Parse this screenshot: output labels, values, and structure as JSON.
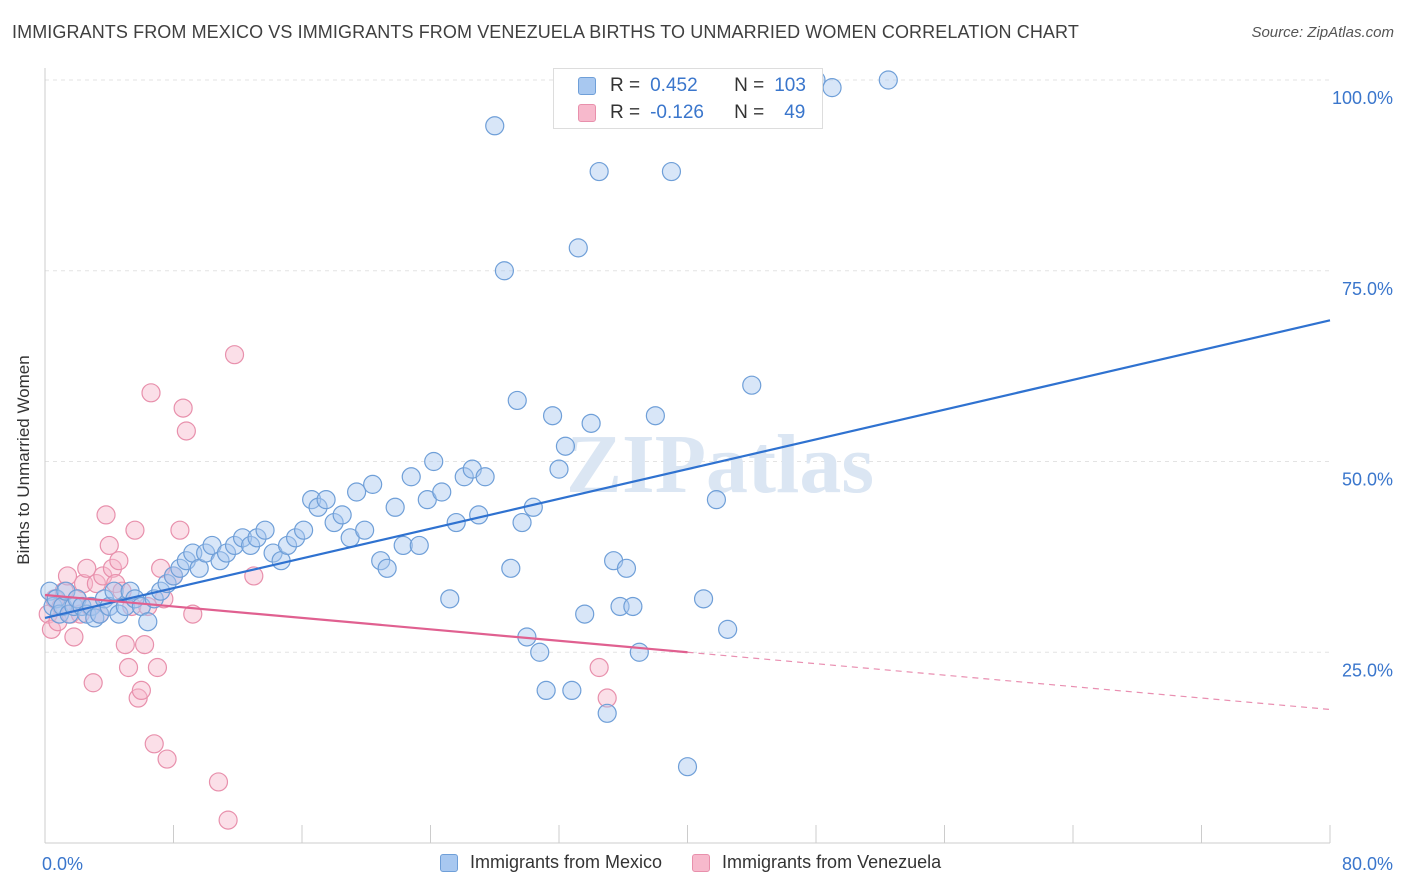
{
  "title": "IMMIGRANTS FROM MEXICO VS IMMIGRANTS FROM VENEZUELA BIRTHS TO UNMARRIED WOMEN CORRELATION CHART",
  "source": "Source: ZipAtlas.com",
  "watermark": "ZIPatlas",
  "legend_top": {
    "r_label": "R =",
    "n_label": "N =",
    "mexico": {
      "r": "0.452",
      "n": "103"
    },
    "venezuela": {
      "r": "-0.126",
      "n": "49"
    }
  },
  "legend_bottom": {
    "mexico": "Immigrants from Mexico",
    "venezuela": "Immigrants from Venezuela"
  },
  "colors": {
    "mexico_fill": "#a8c8f0",
    "mexico_stroke": "#6f9fd8",
    "mexico_line": "#2f72d0",
    "venezuela_fill": "#f7b9cc",
    "venezuela_stroke": "#e890ac",
    "venezuela_line": "#e06090",
    "tick_label": "#3a76cc"
  },
  "chart_data": {
    "type": "scatter",
    "title": "IMMIGRANTS FROM MEXICO VS IMMIGRANTS FROM VENEZUELA BIRTHS TO UNMARRIED WOMEN CORRELATION CHART",
    "xlabel": "",
    "ylabel": "Births to Unmarried Women",
    "xlim": [
      0,
      80
    ],
    "ylim": [
      0,
      100
    ],
    "x_tick_labels": [
      "0.0%",
      "80.0%"
    ],
    "y_tick_labels": [
      "25.0%",
      "50.0%",
      "75.0%",
      "100.0%"
    ],
    "y_ticks": [
      25,
      50,
      75,
      100
    ],
    "grid": true,
    "legend_position": "top-center",
    "series": [
      {
        "name": "Immigrants from Mexico",
        "r": 0.452,
        "n": 103,
        "trend": {
          "x": [
            0,
            80
          ],
          "y": [
            29.5,
            68.5
          ],
          "dashed_from": null
        },
        "points": [
          [
            0.3,
            33
          ],
          [
            0.5,
            31
          ],
          [
            0.7,
            32
          ],
          [
            0.9,
            30
          ],
          [
            1.1,
            31
          ],
          [
            1.3,
            33
          ],
          [
            1.5,
            30
          ],
          [
            1.8,
            31
          ],
          [
            2.0,
            32
          ],
          [
            2.3,
            31
          ],
          [
            2.6,
            30
          ],
          [
            2.9,
            31
          ],
          [
            3.1,
            29.5
          ],
          [
            3.4,
            30
          ],
          [
            3.7,
            32
          ],
          [
            4.0,
            31
          ],
          [
            4.3,
            33
          ],
          [
            4.6,
            30
          ],
          [
            5.0,
            31
          ],
          [
            5.3,
            33
          ],
          [
            5.6,
            32
          ],
          [
            6.0,
            31
          ],
          [
            6.4,
            29
          ],
          [
            6.8,
            32
          ],
          [
            7.2,
            33
          ],
          [
            7.6,
            34
          ],
          [
            8.0,
            35
          ],
          [
            8.4,
            36
          ],
          [
            8.8,
            37
          ],
          [
            9.2,
            38
          ],
          [
            9.6,
            36
          ],
          [
            10.0,
            38
          ],
          [
            10.4,
            39
          ],
          [
            10.9,
            37
          ],
          [
            11.3,
            38
          ],
          [
            11.8,
            39
          ],
          [
            12.3,
            40
          ],
          [
            12.8,
            39
          ],
          [
            13.2,
            40
          ],
          [
            13.7,
            41
          ],
          [
            14.2,
            38
          ],
          [
            14.7,
            37
          ],
          [
            15.1,
            39
          ],
          [
            15.6,
            40
          ],
          [
            16.1,
            41
          ],
          [
            16.6,
            45
          ],
          [
            17.0,
            44
          ],
          [
            17.5,
            45
          ],
          [
            18.0,
            42
          ],
          [
            18.5,
            43
          ],
          [
            19.0,
            40
          ],
          [
            19.4,
            46
          ],
          [
            19.9,
            41
          ],
          [
            20.4,
            47
          ],
          [
            20.9,
            37
          ],
          [
            21.3,
            36
          ],
          [
            21.8,
            44
          ],
          [
            22.3,
            39
          ],
          [
            22.8,
            48
          ],
          [
            23.3,
            39
          ],
          [
            23.8,
            45
          ],
          [
            24.2,
            50
          ],
          [
            24.7,
            46
          ],
          [
            25.2,
            32
          ],
          [
            25.6,
            42
          ],
          [
            26.1,
            48
          ],
          [
            26.6,
            49
          ],
          [
            27.0,
            43
          ],
          [
            27.4,
            48
          ],
          [
            28.0,
            94
          ],
          [
            28.6,
            75
          ],
          [
            29.0,
            36
          ],
          [
            29.4,
            58
          ],
          [
            29.7,
            42
          ],
          [
            30.0,
            27
          ],
          [
            30.4,
            44
          ],
          [
            30.8,
            25
          ],
          [
            31.2,
            20
          ],
          [
            31.6,
            56
          ],
          [
            32.0,
            49
          ],
          [
            32.4,
            52
          ],
          [
            32.8,
            20
          ],
          [
            33.2,
            78
          ],
          [
            33.6,
            30
          ],
          [
            34.0,
            55
          ],
          [
            34.5,
            88
          ],
          [
            35.0,
            17
          ],
          [
            35.4,
            37
          ],
          [
            35.8,
            31
          ],
          [
            36.2,
            36
          ],
          [
            36.6,
            31
          ],
          [
            37.0,
            25
          ],
          [
            38.0,
            56
          ],
          [
            39.0,
            88
          ],
          [
            40.0,
            10
          ],
          [
            41.0,
            32
          ],
          [
            41.8,
            45
          ],
          [
            42.5,
            28
          ],
          [
            44.0,
            60
          ],
          [
            44.8,
            99
          ],
          [
            48.0,
            100
          ],
          [
            49.0,
            99
          ],
          [
            52.5,
            100
          ]
        ]
      },
      {
        "name": "Immigrants from Venezuela",
        "r": -0.126,
        "n": 49,
        "trend": {
          "x": [
            0,
            80
          ],
          "y": [
            32.5,
            17.5
          ],
          "dashed_from": 40
        },
        "points": [
          [
            0.2,
            30
          ],
          [
            0.4,
            28
          ],
          [
            0.6,
            32
          ],
          [
            0.8,
            29
          ],
          [
            1.0,
            31
          ],
          [
            1.2,
            33
          ],
          [
            1.4,
            35
          ],
          [
            1.6,
            30
          ],
          [
            1.8,
            27
          ],
          [
            2.0,
            32
          ],
          [
            2.2,
            30
          ],
          [
            2.4,
            34
          ],
          [
            2.6,
            36
          ],
          [
            2.8,
            31
          ],
          [
            3.0,
            21
          ],
          [
            3.2,
            34
          ],
          [
            3.4,
            30
          ],
          [
            3.6,
            35
          ],
          [
            3.8,
            43
          ],
          [
            4.0,
            39
          ],
          [
            4.2,
            36
          ],
          [
            4.4,
            34
          ],
          [
            4.6,
            37
          ],
          [
            4.8,
            33
          ],
          [
            5.0,
            26
          ],
          [
            5.2,
            23
          ],
          [
            5.4,
            31
          ],
          [
            5.6,
            41
          ],
          [
            5.8,
            19
          ],
          [
            6.0,
            20
          ],
          [
            6.2,
            26
          ],
          [
            6.4,
            31
          ],
          [
            6.6,
            59
          ],
          [
            6.8,
            13
          ],
          [
            7.0,
            23
          ],
          [
            7.2,
            36
          ],
          [
            7.4,
            32
          ],
          [
            7.6,
            11
          ],
          [
            8.0,
            35
          ],
          [
            8.4,
            41
          ],
          [
            8.6,
            57
          ],
          [
            8.8,
            54
          ],
          [
            9.2,
            30
          ],
          [
            10.8,
            8
          ],
          [
            11.4,
            3
          ],
          [
            11.8,
            64
          ],
          [
            13.0,
            35
          ],
          [
            34.5,
            23
          ],
          [
            35.0,
            19
          ]
        ]
      }
    ]
  }
}
